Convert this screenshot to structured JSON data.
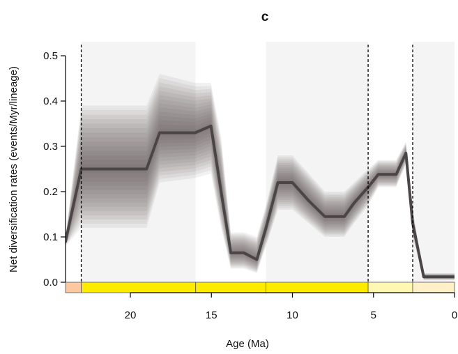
{
  "chart_data": {
    "type": "line",
    "title": "c",
    "xlabel": "Age (Ma)",
    "ylabel": "Net diversification rates (events/Myr/lineage)",
    "xlim": [
      24,
      0
    ],
    "ylim": [
      0,
      0.5
    ],
    "x_ticks": [
      20,
      15,
      10,
      5,
      0
    ],
    "y_ticks": [
      "0.0",
      "0.1",
      "0.2",
      "0.3",
      "0.4",
      "0.5"
    ],
    "series": [
      {
        "x": [
          24,
          23.03,
          19,
          18.2,
          16,
          15.03,
          14.4,
          13.8,
          13,
          12.2,
          11.63,
          10.9,
          10,
          9.0,
          8.0,
          7.5,
          6.8,
          6.2,
          5.33,
          4.7,
          3.6,
          3.0,
          2.58,
          1.9,
          0
        ],
        "y": [
          0.09,
          0.25,
          0.25,
          0.33,
          0.33,
          0.345,
          0.2,
          0.065,
          0.065,
          0.05,
          0.12,
          0.22,
          0.22,
          0.18,
          0.145,
          0.145,
          0.145,
          0.175,
          0.21,
          0.238,
          0.238,
          0.285,
          0.13,
          0.012,
          0.012
        ],
        "upper": [
          0.1,
          0.39,
          0.39,
          0.46,
          0.44,
          0.44,
          0.32,
          0.11,
          0.11,
          0.1,
          0.17,
          0.28,
          0.28,
          0.24,
          0.2,
          0.2,
          0.2,
          0.22,
          0.25,
          0.27,
          0.27,
          0.31,
          0.16,
          0.02,
          0.02
        ],
        "lower": [
          0.08,
          0.12,
          0.12,
          0.22,
          0.23,
          0.24,
          0.12,
          0.03,
          0.03,
          0.02,
          0.08,
          0.16,
          0.16,
          0.13,
          0.1,
          0.1,
          0.1,
          0.13,
          0.17,
          0.21,
          0.21,
          0.26,
          0.1,
          0.005,
          0.005
        ],
        "color": "#4a4546"
      }
    ],
    "boundaries_dashed": [
      23.03,
      5.33,
      2.58
    ],
    "shaded_intervals": [
      [
        23.03,
        15.97
      ],
      [
        11.63,
        5.33
      ],
      [
        2.58,
        0
      ]
    ],
    "timescale": [
      {
        "start": 24,
        "end": 23.03,
        "color": "#fdc7a0"
      },
      {
        "start": 23.03,
        "end": 15.97,
        "color": "#ffeb00"
      },
      {
        "start": 15.97,
        "end": 11.63,
        "color": "#ffeb00"
      },
      {
        "start": 11.63,
        "end": 5.33,
        "color": "#ffeb00"
      },
      {
        "start": 5.33,
        "end": 2.58,
        "color": "#fff7b2"
      },
      {
        "start": 2.58,
        "end": 0,
        "color": "#fff0c8"
      }
    ],
    "shade_color": "#f4f4f4",
    "grid": false
  }
}
